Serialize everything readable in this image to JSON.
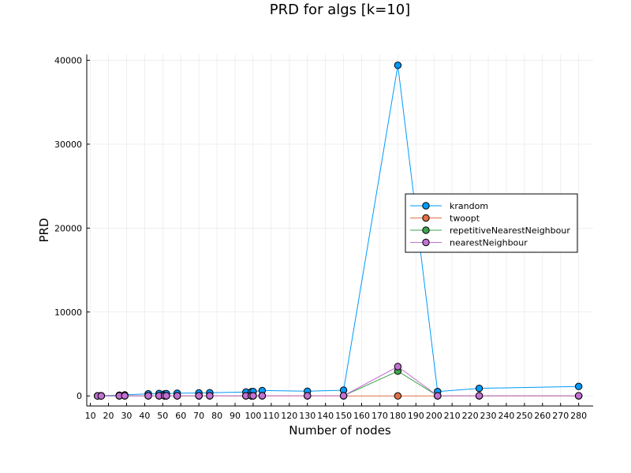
{
  "chart_data": {
    "type": "line",
    "title": "PRD for algs [k=10]",
    "xlabel": "Number of nodes",
    "ylabel": "PRD",
    "xlim": [
      8,
      288
    ],
    "ylim": [
      -1200,
      40700
    ],
    "xticks": [
      10,
      20,
      30,
      40,
      50,
      60,
      70,
      80,
      90,
      100,
      110,
      120,
      130,
      140,
      150,
      160,
      170,
      180,
      190,
      200,
      210,
      220,
      230,
      240,
      250,
      260,
      270,
      280
    ],
    "yticks": [
      0,
      10000,
      20000,
      30000,
      40000
    ],
    "grid": true,
    "legend_position": "right",
    "x": [
      14,
      16,
      26,
      29,
      42,
      48,
      51,
      52,
      58,
      70,
      76,
      96,
      99,
      100,
      105,
      130,
      150,
      180,
      202,
      225,
      280
    ],
    "series": [
      {
        "name": "krandom",
        "color": "#009AFA",
        "values": [
          20,
          30,
          80,
          120,
          250,
          280,
          220,
          270,
          320,
          350,
          380,
          460,
          500,
          520,
          640,
          560,
          680,
          39400,
          520,
          900,
          1130
        ]
      },
      {
        "name": "twoopt",
        "color": "#E26F46",
        "values": [
          0,
          0,
          0,
          0,
          0,
          0,
          0,
          0,
          0,
          0,
          0,
          0,
          0,
          0,
          0,
          0,
          0,
          0,
          0,
          0,
          0
        ]
      },
      {
        "name": "repetitiveNearestNeighbour",
        "color": "#3DA44D",
        "values": [
          0,
          0,
          10,
          10,
          15,
          15,
          15,
          15,
          15,
          15,
          20,
          15,
          15,
          15,
          20,
          20,
          20,
          2950,
          15,
          15,
          15
        ]
      },
      {
        "name": "nearestNeighbour",
        "color": "#C271D2",
        "values": [
          0,
          0,
          15,
          15,
          20,
          20,
          20,
          20,
          20,
          20,
          25,
          20,
          20,
          20,
          25,
          25,
          25,
          3500,
          20,
          20,
          20
        ]
      }
    ]
  }
}
